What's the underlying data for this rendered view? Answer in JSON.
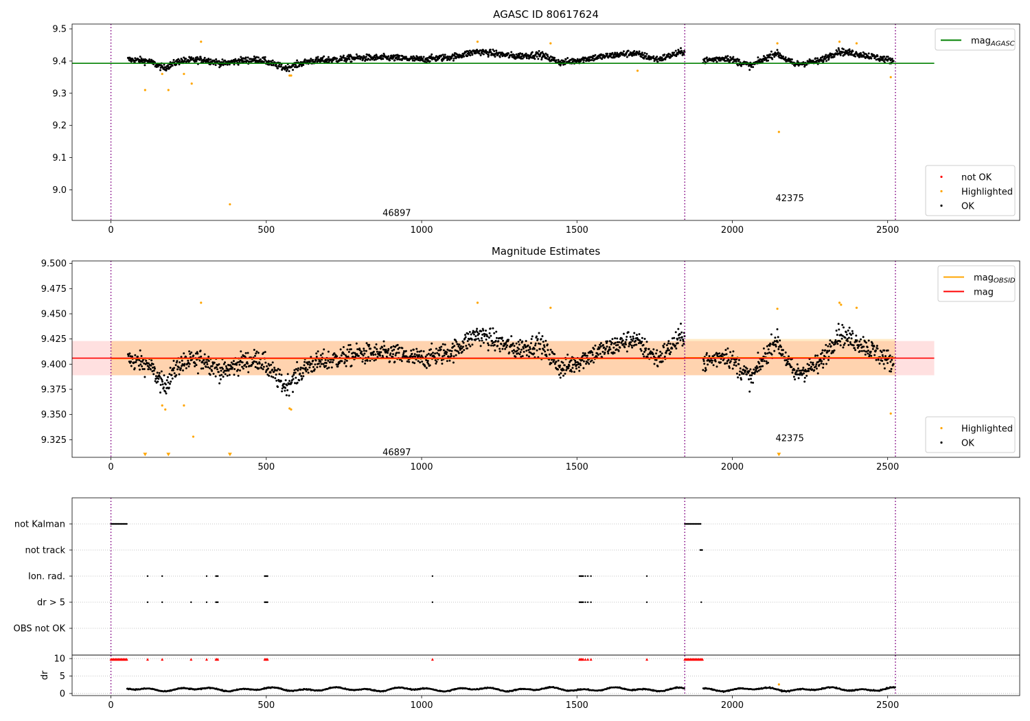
{
  "chart_data": [
    {
      "type": "scatter",
      "title": "AGASC ID 80617624",
      "xlim": [
        -125,
        2925
      ],
      "ylim": [
        8.905,
        9.515
      ],
      "xticks": [
        0,
        500,
        1000,
        1500,
        2000,
        2500
      ],
      "yticks": [
        9.0,
        9.1,
        9.2,
        9.3,
        9.4,
        9.5
      ],
      "ytick_labels": [
        "9.0",
        "9.1",
        "9.2",
        "9.3",
        "9.4",
        "9.5"
      ],
      "segments": [
        {
          "start": 0,
          "end": 1847,
          "label": "46897",
          "label_x": 920,
          "label_y": 8.93
        },
        {
          "start": 1847,
          "end": 2525,
          "label": "42375",
          "label_x": 2185,
          "label_y": 8.975
        }
      ],
      "hline": {
        "y": 9.393,
        "x0": -125,
        "x1": 2650,
        "color": "#008000"
      },
      "series": [
        {
          "name": "not OK",
          "color": "#ff0000",
          "points": []
        },
        {
          "name": "Highlighted",
          "color": "#ffa500",
          "points": [
            [
              110,
              9.31
            ],
            [
              185,
              9.31
            ],
            [
              165,
              9.36
            ],
            [
              235,
              9.36
            ],
            [
              260,
              9.33
            ],
            [
              290,
              9.46
            ],
            [
              383,
              8.955
            ],
            [
              575,
              9.355
            ],
            [
              580,
              9.355
            ],
            [
              1180,
              9.46
            ],
            [
              1415,
              9.455
            ],
            [
              1695,
              9.37
            ],
            [
              2145,
              9.455
            ],
            [
              2150,
              9.18
            ],
            [
              2345,
              9.46
            ],
            [
              2400,
              9.455
            ],
            [
              2510,
              9.35
            ]
          ]
        },
        {
          "name": "OK",
          "color": "#000000",
          "baseline": [
            [
              50,
              9.405
            ],
            [
              120,
              9.4
            ],
            [
              170,
              9.378
            ],
            [
              220,
              9.4
            ],
            [
              300,
              9.405
            ],
            [
              360,
              9.392
            ],
            [
              420,
              9.402
            ],
            [
              480,
              9.405
            ],
            [
              560,
              9.378
            ],
            [
              640,
              9.4
            ],
            [
              720,
              9.405
            ],
            [
              800,
              9.41
            ],
            [
              900,
              9.41
            ],
            [
              1000,
              9.405
            ],
            [
              1100,
              9.413
            ],
            [
              1180,
              9.43
            ],
            [
              1300,
              9.415
            ],
            [
              1380,
              9.42
            ],
            [
              1450,
              9.395
            ],
            [
              1550,
              9.41
            ],
            [
              1680,
              9.425
            ],
            [
              1760,
              9.405
            ],
            [
              1845,
              9.43
            ],
            [
              1900,
              9.4
            ],
            [
              1980,
              9.41
            ],
            [
              2060,
              9.385
            ],
            [
              2140,
              9.425
            ],
            [
              2200,
              9.39
            ],
            [
              2280,
              9.4
            ],
            [
              2340,
              9.43
            ],
            [
              2420,
              9.42
            ],
            [
              2520,
              9.4
            ]
          ],
          "scatter": 0.012
        }
      ],
      "legends": [
        {
          "position": "upper-right",
          "entries": [
            {
              "kind": "line",
              "color": "#008000",
              "label": "mag",
              "sub": "AGASC"
            }
          ]
        },
        {
          "position": "lower-right",
          "entries": [
            {
              "kind": "dot",
              "color": "#ff0000",
              "label": "not OK"
            },
            {
              "kind": "dot",
              "color": "#ffa500",
              "label": "Highlighted"
            },
            {
              "kind": "dot",
              "color": "#000000",
              "label": "OK"
            }
          ]
        }
      ]
    },
    {
      "type": "scatter",
      "title": "Magnitude Estimates",
      "xlim": [
        -125,
        2925
      ],
      "ylim": [
        9.3075,
        9.5025
      ],
      "xticks": [
        0,
        500,
        1000,
        1500,
        2000,
        2500
      ],
      "yticks": [
        9.325,
        9.35,
        9.375,
        9.4,
        9.425,
        9.45,
        9.475,
        9.5
      ],
      "ytick_labels": [
        "9.325",
        "9.350",
        "9.375",
        "9.400",
        "9.425",
        "9.450",
        "9.475",
        "9.500"
      ],
      "segments": [
        {
          "start": 0,
          "end": 1847,
          "label": "46897",
          "label_x": 920,
          "label_y": 9.313
        },
        {
          "start": 1847,
          "end": 2525,
          "label": "42375",
          "label_x": 2185,
          "label_y": 9.327
        }
      ],
      "bands": [
        {
          "x0": -125,
          "x1": 2650,
          "y0": 9.389,
          "y1": 9.423,
          "color": "#ff0000",
          "opacity": 0.12
        },
        {
          "x0": 0,
          "x1": 1847,
          "y0": 9.389,
          "y1": 9.423,
          "color": "#ffa500",
          "opacity": 0.22
        },
        {
          "x0": 1847,
          "x1": 2525,
          "y0": 9.389,
          "y1": 9.425,
          "color": "#ffa500",
          "opacity": 0.22
        }
      ],
      "hlines": [
        {
          "y": 9.4055,
          "x0": 0,
          "x1": 1847,
          "color": "#ffa500"
        },
        {
          "y": 9.4065,
          "x0": 1847,
          "x1": 2525,
          "color": "#ffa500"
        },
        {
          "y": 9.406,
          "x0": -125,
          "x1": 2650,
          "color": "#ff0000"
        }
      ],
      "series": [
        {
          "name": "Highlighted",
          "color": "#ffa500",
          "points": [
            [
              165,
              9.359
            ],
            [
              175,
              9.355
            ],
            [
              235,
              9.359
            ],
            [
              265,
              9.328
            ],
            [
              290,
              9.461
            ],
            [
              575,
              9.356
            ],
            [
              580,
              9.355
            ],
            [
              1180,
              9.461
            ],
            [
              1415,
              9.456
            ],
            [
              2145,
              9.455
            ],
            [
              2345,
              9.461
            ],
            [
              2350,
              9.459
            ],
            [
              2400,
              9.456
            ],
            [
              2510,
              9.351
            ]
          ]
        },
        {
          "name": "Highlighted (off scale)",
          "color": "#ffa500",
          "marker": "triangle-down",
          "points": [
            [
              110,
              9.31
            ],
            [
              185,
              9.31
            ],
            [
              383,
              9.31
            ],
            [
              2150,
              9.31
            ]
          ]
        },
        {
          "name": "OK",
          "color": "#000000",
          "baseline": [
            [
              50,
              9.405
            ],
            [
              120,
              9.4
            ],
            [
              170,
              9.378
            ],
            [
              220,
              9.4
            ],
            [
              300,
              9.405
            ],
            [
              360,
              9.392
            ],
            [
              420,
              9.402
            ],
            [
              480,
              9.405
            ],
            [
              560,
              9.378
            ],
            [
              640,
              9.4
            ],
            [
              720,
              9.405
            ],
            [
              800,
              9.41
            ],
            [
              900,
              9.41
            ],
            [
              1000,
              9.405
            ],
            [
              1100,
              9.413
            ],
            [
              1180,
              9.43
            ],
            [
              1300,
              9.415
            ],
            [
              1380,
              9.42
            ],
            [
              1450,
              9.395
            ],
            [
              1550,
              9.41
            ],
            [
              1680,
              9.425
            ],
            [
              1760,
              9.405
            ],
            [
              1845,
              9.43
            ],
            [
              1900,
              9.4
            ],
            [
              1980,
              9.41
            ],
            [
              2060,
              9.385
            ],
            [
              2140,
              9.425
            ],
            [
              2200,
              9.39
            ],
            [
              2280,
              9.4
            ],
            [
              2340,
              9.43
            ],
            [
              2420,
              9.42
            ],
            [
              2520,
              9.4
            ]
          ],
          "scatter": 0.012
        }
      ],
      "legends": [
        {
          "position": "upper-right",
          "entries": [
            {
              "kind": "line",
              "color": "#ffa500",
              "label": "mag",
              "sub": "OBSID"
            },
            {
              "kind": "line",
              "color": "#ff0000",
              "label": "mag"
            }
          ]
        },
        {
          "position": "lower-right",
          "entries": [
            {
              "kind": "dot",
              "color": "#ffa500",
              "label": "Highlighted"
            },
            {
              "kind": "dot",
              "color": "#000000",
              "label": "OK"
            }
          ]
        }
      ]
    },
    {
      "type": "scatter",
      "title": "",
      "xlim": [
        -125,
        2925
      ],
      "xticks": [
        0,
        500,
        1000,
        1500,
        2000,
        2500
      ],
      "segments": [
        {
          "start": 0
        },
        {
          "start": 1847
        },
        {
          "start": 2525
        }
      ],
      "flag_rows": [
        {
          "label": "not Kalman",
          "ranges": [
            [
              0,
              52
            ],
            [
              1847,
              1900
            ]
          ],
          "points": []
        },
        {
          "label": "not track",
          "ranges": [
            [
              1897,
              1905
            ]
          ],
          "points": []
        },
        {
          "label": "Ion. rad.",
          "ranges": [
            [
              338,
              345
            ],
            [
              495,
              505
            ],
            [
              1508,
              1520
            ]
          ],
          "points": [
            118,
            165,
            308,
            1035,
            1527,
            1535,
            1545,
            1725
          ]
        },
        {
          "label": "dr > 5",
          "ranges": [
            [
              338,
              345
            ],
            [
              495,
              505
            ],
            [
              1508,
              1520
            ]
          ],
          "points": [
            118,
            165,
            258,
            308,
            1035,
            1527,
            1535,
            1545,
            1725,
            1900
          ]
        },
        {
          "label": "OBS not OK",
          "ranges": [],
          "points": []
        }
      ],
      "dr": {
        "ylabel": "dr",
        "ylim": [
          -0.6,
          11
        ],
        "yticks": [
          0,
          5,
          10
        ],
        "clip_marker_y": 9.8,
        "clip_ranges": [
          [
            0,
            52
          ],
          [
            338,
            345
          ],
          [
            495,
            505
          ],
          [
            1508,
            1520
          ],
          [
            1847,
            1905
          ]
        ],
        "clip_points": [
          118,
          165,
          258,
          308,
          1035,
          1527,
          1535,
          1545,
          1725
        ],
        "trace": {
          "x0": 52,
          "x1": 2525,
          "gap": [
            1847,
            1905
          ],
          "mean": 1.2,
          "amplitude": 0.6
        },
        "highlight": [
          [
            2150,
            2.6
          ]
        ]
      }
    }
  ]
}
